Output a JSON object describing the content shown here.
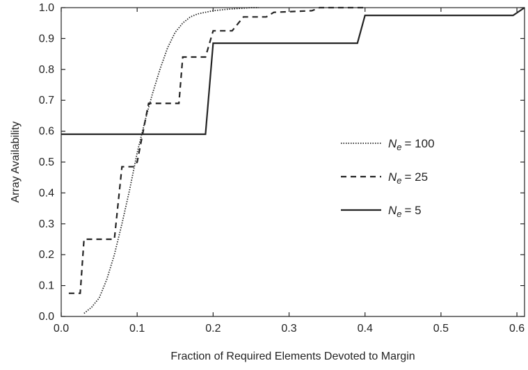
{
  "chart_data": {
    "type": "line",
    "title": "",
    "xlabel": "Fraction of Required Elements Devoted to Margin",
    "ylabel": "Array Availability",
    "xlim": [
      0.0,
      0.61
    ],
    "ylim": [
      0.0,
      1.0
    ],
    "xticks": [
      "0.0",
      "0.1",
      "0.2",
      "0.3",
      "0.4",
      "0.5",
      "0.6"
    ],
    "yticks": [
      "0.0",
      "0.1",
      "0.2",
      "0.3",
      "0.4",
      "0.5",
      "0.6",
      "0.7",
      "0.8",
      "0.9",
      "1.0"
    ],
    "grid": false,
    "legend_position": "center-right",
    "series": [
      {
        "name": "Ne = 100",
        "label_symbol": "N",
        "label_subscript": "e",
        "label_value": "= 100",
        "line_style": "dotted",
        "color": "#222222",
        "points": [
          [
            0.03,
            0.01
          ],
          [
            0.04,
            0.03
          ],
          [
            0.05,
            0.06
          ],
          [
            0.06,
            0.12
          ],
          [
            0.07,
            0.2
          ],
          [
            0.08,
            0.3
          ],
          [
            0.09,
            0.41
          ],
          [
            0.1,
            0.53
          ],
          [
            0.11,
            0.63
          ],
          [
            0.12,
            0.72
          ],
          [
            0.13,
            0.8
          ],
          [
            0.14,
            0.87
          ],
          [
            0.15,
            0.92
          ],
          [
            0.16,
            0.95
          ],
          [
            0.17,
            0.97
          ],
          [
            0.18,
            0.98
          ],
          [
            0.2,
            0.99
          ],
          [
            0.22,
            0.995
          ],
          [
            0.25,
            1.0
          ],
          [
            0.26,
            1.0
          ]
        ]
      },
      {
        "name": "Ne = 25",
        "label_symbol": "N",
        "label_subscript": "e",
        "label_value": "= 25",
        "line_style": "dashed",
        "color": "#222222",
        "points": [
          [
            0.01,
            0.075
          ],
          [
            0.025,
            0.075
          ],
          [
            0.03,
            0.25
          ],
          [
            0.07,
            0.25
          ],
          [
            0.08,
            0.485
          ],
          [
            0.095,
            0.485
          ],
          [
            0.1,
            0.5
          ],
          [
            0.115,
            0.69
          ],
          [
            0.155,
            0.69
          ],
          [
            0.16,
            0.84
          ],
          [
            0.19,
            0.84
          ],
          [
            0.2,
            0.925
          ],
          [
            0.225,
            0.925
          ],
          [
            0.24,
            0.97
          ],
          [
            0.27,
            0.97
          ],
          [
            0.28,
            0.985
          ],
          [
            0.33,
            0.99
          ],
          [
            0.34,
            1.0
          ],
          [
            0.4,
            1.0
          ]
        ]
      },
      {
        "name": "Ne = 5",
        "label_symbol": "N",
        "label_subscript": "e",
        "label_value": "= 5",
        "line_style": "solid",
        "color": "#222222",
        "points": [
          [
            0.0,
            0.59
          ],
          [
            0.19,
            0.59
          ],
          [
            0.2,
            0.885
          ],
          [
            0.39,
            0.885
          ],
          [
            0.4,
            0.975
          ],
          [
            0.595,
            0.975
          ],
          [
            0.61,
            1.0
          ]
        ]
      }
    ]
  }
}
